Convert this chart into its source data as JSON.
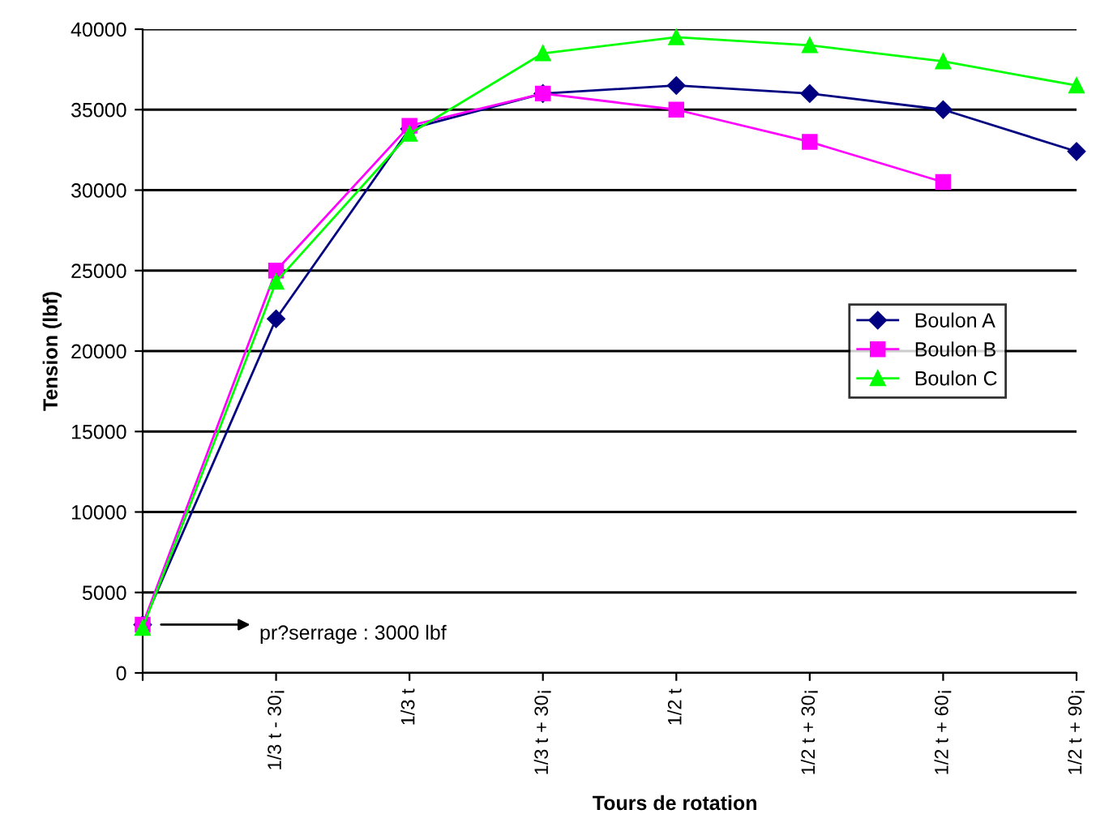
{
  "chart_data": {
    "type": "line",
    "xlabel": "Tours de rotation",
    "ylabel": "Tension (lbf)",
    "categories": [
      null,
      "1/3 t - 30¡",
      "1/3 t",
      "1/3 t + 30¡",
      "1/2 t",
      "1/2 t + 30¡",
      "1/2 t + 60¡",
      "1/2 t + 90¡"
    ],
    "series": [
      {
        "name": "Boulon A",
        "color": "#000080",
        "marker": "diamond",
        "values": [
          3000,
          22000,
          33800,
          36000,
          36500,
          36000,
          35000,
          32400
        ]
      },
      {
        "name": "Boulon B",
        "color": "#ff00ff",
        "marker": "square",
        "values": [
          3000,
          25000,
          34000,
          36000,
          35000,
          33000,
          30500,
          null
        ]
      },
      {
        "name": "Boulon C",
        "color": "#00ff00",
        "marker": "triangle",
        "values": [
          2800,
          24300,
          33500,
          38500,
          39500,
          39000,
          38000,
          36500
        ]
      }
    ],
    "ylim": [
      0,
      40000
    ],
    "yticks": [
      0,
      5000,
      10000,
      15000,
      20000,
      25000,
      30000,
      35000,
      40000
    ],
    "grid": "y",
    "legend": "right",
    "line_style": "solid",
    "annotations": [
      "pr?serrage : 3000 lbf"
    ]
  }
}
